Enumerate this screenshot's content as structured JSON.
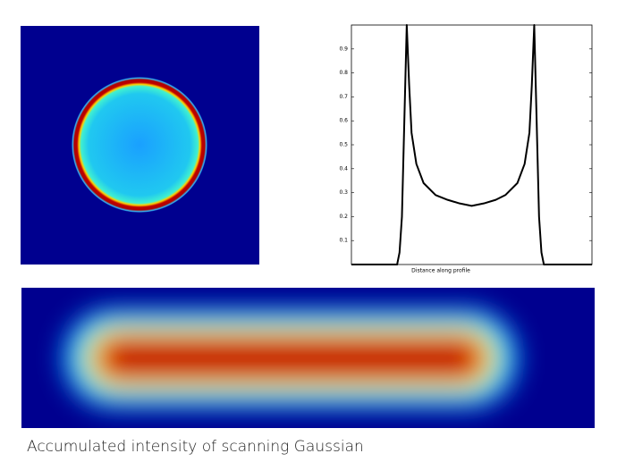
{
  "caption": "Accumulated intensity of scanning Gaussian",
  "chart_data": {
    "type": "line",
    "xlabel": "Distance along profile",
    "x": [
      0,
      5,
      10,
      15,
      19,
      20,
      21,
      22,
      23,
      24,
      25,
      27,
      30,
      35,
      40,
      45,
      50,
      55,
      60,
      64,
      69,
      72,
      74,
      75,
      76,
      77,
      78,
      79,
      80,
      85,
      90,
      95,
      100
    ],
    "series": [
      {
        "color": "#000000",
        "values": [
          0,
          0,
          0,
          0,
          0,
          0.05,
          0.2,
          0.6,
          1.0,
          0.75,
          0.55,
          0.42,
          0.34,
          0.29,
          0.27,
          0.255,
          0.245,
          0.255,
          0.27,
          0.29,
          0.34,
          0.42,
          0.55,
          0.75,
          1.0,
          0.6,
          0.2,
          0.05,
          0,
          0,
          0,
          0,
          0
        ]
      }
    ],
    "xlim": [
      0,
      100
    ],
    "ylim": [
      0,
      1
    ],
    "yticks": [
      0.1,
      0.2,
      0.3,
      0.4,
      0.5,
      0.6,
      0.7,
      0.8,
      0.9
    ]
  }
}
